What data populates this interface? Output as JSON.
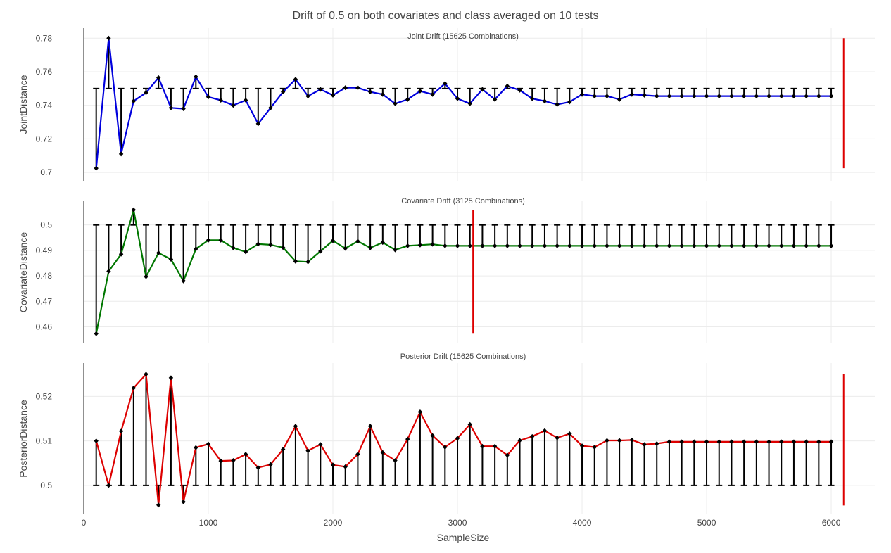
{
  "title": "Drift of 0.5 on both covariates and class averaged on 10 tests",
  "xlabel": "SampleSize",
  "xticks": [
    0,
    1000,
    2000,
    3000,
    4000,
    5000,
    6000
  ],
  "colors": {
    "joint": "#0000dd",
    "covariate": "#007700",
    "posterior": "#dd0000",
    "marker": "#000000",
    "refline": "#dd0000",
    "errorbar": "#000000"
  },
  "chart_data": [
    {
      "type": "line",
      "subtitle": "Joint Drift (15625 Combinations)",
      "ylabel": "JointDistance",
      "color": "#0000dd",
      "yticks": [
        0.7,
        0.72,
        0.74,
        0.76,
        0.78
      ],
      "ylim": [
        0.695,
        0.786
      ],
      "xlim": [
        0,
        6350
      ],
      "reference": 0.75,
      "vline": {
        "x": 6100,
        "y0": 0.7025,
        "y1": 0.78
      },
      "x": [
        100,
        200,
        300,
        400,
        500,
        600,
        700,
        800,
        900,
        1000,
        1100,
        1200,
        1300,
        1400,
        1500,
        1600,
        1700,
        1800,
        1900,
        2000,
        2100,
        2200,
        2300,
        2400,
        2500,
        2600,
        2700,
        2800,
        2900,
        3000,
        3100,
        3200,
        3300,
        3400,
        3500,
        3600,
        3700,
        3800,
        3900,
        4000,
        4100,
        4200,
        4300,
        4400,
        4500,
        4600,
        4700,
        4800,
        4900,
        5000,
        5100,
        5200,
        5300,
        5400,
        5500,
        5600,
        5700,
        5800,
        5900,
        6000
      ],
      "y": [
        0.7025,
        0.78,
        0.711,
        0.7425,
        0.7475,
        0.7565,
        0.7385,
        0.738,
        0.757,
        0.745,
        0.743,
        0.74,
        0.743,
        0.729,
        0.7385,
        0.748,
        0.7555,
        0.7455,
        0.7495,
        0.746,
        0.7505,
        0.7505,
        0.748,
        0.7465,
        0.741,
        0.7435,
        0.7485,
        0.7465,
        0.753,
        0.744,
        0.741,
        0.7495,
        0.7435,
        0.7515,
        0.749,
        0.744,
        0.7425,
        0.7405,
        0.742,
        0.7465,
        0.7455,
        0.7455,
        0.7435,
        0.7465,
        0.746,
        0.7455,
        0.7455,
        0.7455,
        0.7455,
        0.7455,
        0.7455,
        0.7455,
        0.7455,
        0.7455,
        0.7455,
        0.7455,
        0.7455,
        0.7455,
        0.7455,
        0.7455
      ]
    },
    {
      "type": "line",
      "subtitle": "Covariate Drift (3125 Combinations)",
      "ylabel": "CovariateDistance",
      "color": "#007700",
      "yticks": [
        0.46,
        0.47,
        0.48,
        0.49,
        0.5
      ],
      "ylim": [
        0.4535,
        0.5093
      ],
      "xlim": [
        0,
        6350
      ],
      "reference": 0.5,
      "vline": {
        "x": 3125,
        "y0": 0.4573,
        "y1": 0.5059
      },
      "x": [
        100,
        200,
        300,
        400,
        500,
        600,
        700,
        800,
        900,
        1000,
        1100,
        1200,
        1300,
        1400,
        1500,
        1600,
        1700,
        1800,
        1900,
        2000,
        2100,
        2200,
        2300,
        2400,
        2500,
        2600,
        2700,
        2800,
        2900,
        3000,
        3100,
        3200,
        3300,
        3400,
        3500,
        3600,
        3700,
        3800,
        3900,
        4000,
        4100,
        4200,
        4300,
        4400,
        4500,
        4600,
        4700,
        4800,
        4900,
        5000,
        5100,
        5200,
        5300,
        5400,
        5500,
        5600,
        5700,
        5800,
        5900,
        6000
      ],
      "y": [
        0.4573,
        0.4818,
        0.4885,
        0.5059,
        0.4797,
        0.489,
        0.4865,
        0.478,
        0.4906,
        0.494,
        0.494,
        0.491,
        0.4894,
        0.4925,
        0.4922,
        0.4911,
        0.4857,
        0.4855,
        0.4897,
        0.4938,
        0.4908,
        0.4936,
        0.491,
        0.4931,
        0.4902,
        0.4918,
        0.4921,
        0.4924,
        0.4918,
        0.4918,
        0.4918,
        0.4918,
        0.4918,
        0.4918,
        0.4918,
        0.4918,
        0.4918,
        0.4918,
        0.4918,
        0.4918,
        0.4918,
        0.4918,
        0.4918,
        0.4918,
        0.4918,
        0.4918,
        0.4918,
        0.4918,
        0.4918,
        0.4918,
        0.4918,
        0.4918,
        0.4918,
        0.4918,
        0.4918,
        0.4918,
        0.4918,
        0.4918,
        0.4918,
        0.4918
      ]
    },
    {
      "type": "line",
      "subtitle": "Posterior Drift (15625 Combinations)",
      "ylabel": "PosteriorDistance",
      "color": "#dd0000",
      "yticks": [
        0.5,
        0.51,
        0.52
      ],
      "ylim": [
        0.4935,
        0.5275
      ],
      "xlim": [
        0,
        6350
      ],
      "reference": 0.5,
      "vline": {
        "x": 6100,
        "y0": 0.4955,
        "y1": 0.525
      },
      "x": [
        100,
        200,
        300,
        400,
        500,
        600,
        700,
        800,
        900,
        1000,
        1100,
        1200,
        1300,
        1400,
        1500,
        1600,
        1700,
        1800,
        1900,
        2000,
        2100,
        2200,
        2300,
        2400,
        2500,
        2600,
        2700,
        2800,
        2900,
        3000,
        3100,
        3200,
        3300,
        3400,
        3500,
        3600,
        3700,
        3800,
        3900,
        4000,
        4100,
        4200,
        4300,
        4400,
        4500,
        4600,
        4700,
        4800,
        4900,
        5000,
        5100,
        5200,
        5300,
        5400,
        5500,
        5600,
        5700,
        5800,
        5900,
        6000
      ],
      "y": [
        0.51,
        0.5,
        0.5122,
        0.5219,
        0.525,
        0.4956,
        0.5242,
        0.4963,
        0.5085,
        0.5093,
        0.5055,
        0.5056,
        0.507,
        0.504,
        0.5047,
        0.5081,
        0.5133,
        0.5078,
        0.5092,
        0.5046,
        0.5042,
        0.507,
        0.5133,
        0.5074,
        0.5056,
        0.5104,
        0.5165,
        0.5112,
        0.5086,
        0.5106,
        0.5137,
        0.5088,
        0.5088,
        0.5068,
        0.5101,
        0.511,
        0.5123,
        0.5107,
        0.5116,
        0.5089,
        0.5086,
        0.5101,
        0.5101,
        0.5102,
        0.5092,
        0.5094,
        0.5098,
        0.5098,
        0.5098,
        0.5098,
        0.5098,
        0.5098,
        0.5098,
        0.5098,
        0.5098,
        0.5098,
        0.5098,
        0.5098,
        0.5098,
        0.5098
      ]
    }
  ]
}
